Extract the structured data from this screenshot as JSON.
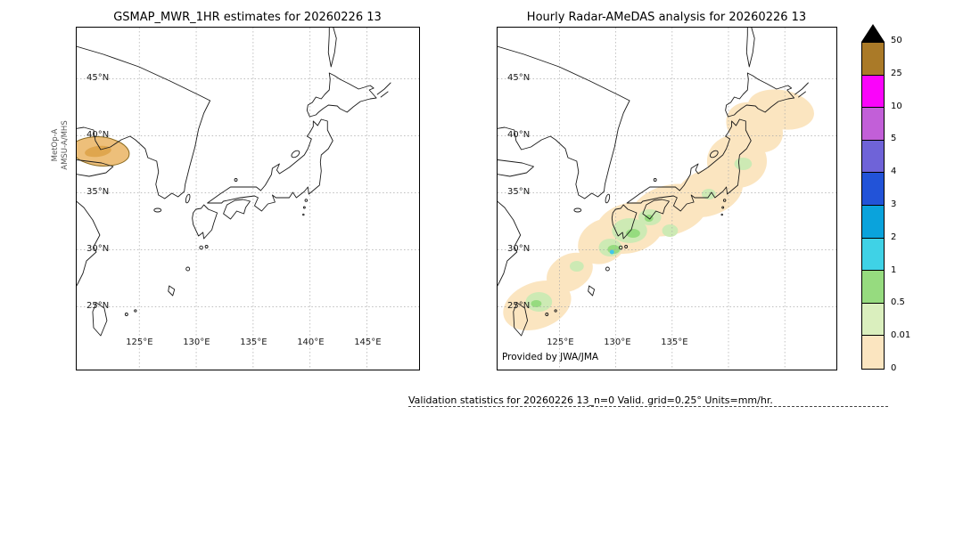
{
  "figure": {
    "left_map": {
      "title": "GSMAP_MWR_1HR estimates for 20260226 13",
      "sensor_label_line1": "MetOp-A",
      "sensor_label_line2": "AMSU-A/MHS",
      "lat_ticks": [
        "45°N",
        "40°N",
        "35°N",
        "30°N",
        "25°N"
      ],
      "lon_ticks": [
        "125°E",
        "130°E",
        "135°E",
        "140°E",
        "145°E"
      ]
    },
    "right_map": {
      "title": "Hourly Radar-AMeDAS analysis for 20260226 13",
      "lat_ticks": [
        "45°N",
        "40°N",
        "35°N",
        "30°N",
        "25°N"
      ],
      "lon_ticks": [
        "125°E",
        "130°E",
        "135°E"
      ],
      "credit": "Provided by JWA/JMA"
    },
    "colorbar": {
      "units_implied": "mm/hr",
      "tick_labels": [
        "50",
        "25",
        "10",
        "5",
        "4",
        "3",
        "2",
        "1",
        "0.5",
        "0.01",
        "0"
      ],
      "segment_colors_top_to_bottom": [
        "#aa7a28",
        "#fa04fa",
        "#c25fd8",
        "#6f63d8",
        "#2253d8",
        "#0aa3dc",
        "#3fd2e6",
        "#96db7f",
        "#daefbe",
        "#fbe5c0"
      ],
      "arrow_color": "#000000"
    },
    "footer": {
      "stats_line": "Validation statistics for 20260226 13_n=0 Valid. grid=0.25° Units=mm/hr."
    },
    "map_colors": {
      "coastline": "#1a1a1a",
      "gridline": "#a8a8a8",
      "left_swath_fill": "#edbf7a",
      "left_swath_core": "#dfa64e",
      "left_swath_outline": "#8a6a20",
      "precip_trace": "#fbe5c0",
      "precip_light": "#cdeab4",
      "precip_moderate": "#96db7f",
      "precip_cyan": "#41c7ea"
    }
  }
}
